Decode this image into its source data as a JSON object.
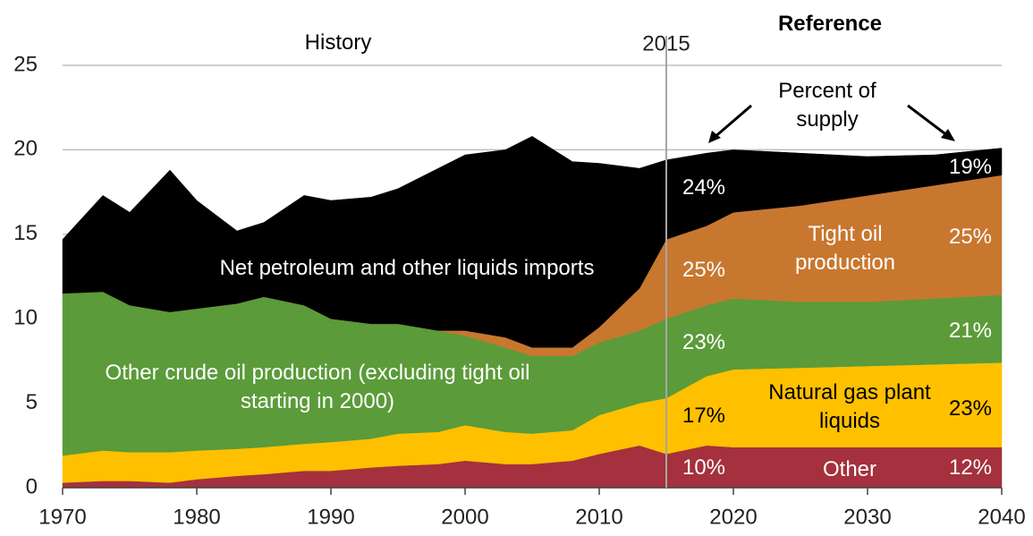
{
  "chart_data": {
    "type": "stacked_area",
    "title": "Reference",
    "annotations": {
      "history": "History",
      "percent_of_supply": "Percent of supply"
    },
    "divider": {
      "x": 2015
    },
    "x": [
      1970,
      1973,
      1975,
      1978,
      1980,
      1983,
      1985,
      1988,
      1990,
      1993,
      1995,
      1998,
      2000,
      2003,
      2005,
      2008,
      2010,
      2013,
      2015,
      2018,
      2020,
      2025,
      2030,
      2035,
      2040
    ],
    "xlim": [
      1970,
      2040
    ],
    "xticks": [
      1970,
      1980,
      1990,
      2000,
      2010,
      2020,
      2030,
      2040
    ],
    "ylim": [
      0,
      25
    ],
    "yticks": [
      0,
      5,
      10,
      15,
      20,
      25
    ],
    "grid": true,
    "series": [
      {
        "name": "Other",
        "color": "#a4313d",
        "share_labels": [
          "10%",
          "12%"
        ],
        "values": [
          0.3,
          0.4,
          0.4,
          0.3,
          0.5,
          0.7,
          0.8,
          1.0,
          1.0,
          1.2,
          1.3,
          1.4,
          1.6,
          1.4,
          1.4,
          1.6,
          2.0,
          2.5,
          2.0,
          2.5,
          2.4,
          2.4,
          2.4,
          2.4,
          2.4
        ]
      },
      {
        "name": "Natural gas plant liquids",
        "color": "#ffc000",
        "share_labels": [
          "17%",
          "23%"
        ],
        "values": [
          1.6,
          1.8,
          1.7,
          1.8,
          1.7,
          1.6,
          1.6,
          1.6,
          1.7,
          1.7,
          1.9,
          1.9,
          2.1,
          1.9,
          1.8,
          1.8,
          2.3,
          2.5,
          3.3,
          4.1,
          4.6,
          4.7,
          4.8,
          4.9,
          5.0
        ]
      },
      {
        "name": "Other crude oil production (excluding tight oil starting in 2000)",
        "color": "#5b9b3a",
        "share_labels": [
          "23%",
          "21%"
        ],
        "values": [
          9.6,
          9.4,
          8.7,
          8.3,
          8.4,
          8.6,
          8.9,
          8.2,
          7.3,
          6.8,
          6.5,
          6.0,
          5.3,
          5.0,
          4.6,
          4.4,
          4.3,
          4.3,
          4.7,
          4.2,
          4.2,
          3.9,
          3.8,
          3.9,
          4.0
        ]
      },
      {
        "name": "Tight oil production",
        "color": "#c8772f",
        "share_labels": [
          "25%",
          "25%"
        ],
        "values": [
          0,
          0,
          0,
          0,
          0,
          0,
          0,
          0,
          0,
          0,
          0,
          0,
          0.3,
          0.6,
          0.5,
          0.5,
          0.9,
          2.5,
          4.7,
          4.7,
          5.1,
          5.7,
          6.3,
          6.7,
          7.1
        ]
      },
      {
        "name": "Net petroleum and other liquids imports",
        "color": "#000000",
        "share_labels": [
          "24%",
          "19%"
        ],
        "values": [
          3.2,
          5.7,
          5.5,
          8.4,
          6.4,
          4.3,
          4.4,
          6.5,
          7.0,
          7.5,
          8.0,
          9.6,
          10.4,
          11.1,
          12.5,
          11.0,
          9.7,
          7.1,
          4.7,
          4.3,
          3.7,
          3.1,
          2.3,
          1.8,
          1.6
        ]
      }
    ]
  }
}
